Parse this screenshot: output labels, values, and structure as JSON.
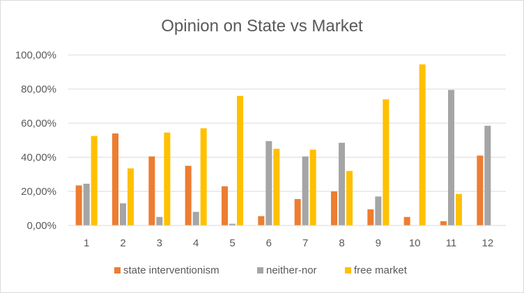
{
  "chart_data": {
    "type": "bar",
    "title": "Opinion on State vs Market",
    "xlabel": "",
    "ylabel": "",
    "categories": [
      "1",
      "2",
      "3",
      "4",
      "5",
      "6",
      "7",
      "8",
      "9",
      "10",
      "11",
      "12"
    ],
    "series": [
      {
        "name": "state interventionism",
        "color": "#ed7d31",
        "values": [
          23.5,
          54.0,
          40.5,
          35.0,
          23.0,
          5.5,
          15.5,
          20.0,
          9.5,
          5.0,
          2.5,
          41.0
        ]
      },
      {
        "name": "neither-nor",
        "color": "#a5a5a5",
        "values": [
          24.5,
          13.0,
          5.0,
          8.0,
          1.0,
          49.5,
          40.5,
          48.5,
          17.0,
          0,
          79.5,
          58.5
        ]
      },
      {
        "name": "free market",
        "color": "#ffc000",
        "values": [
          52.5,
          33.5,
          54.5,
          57.0,
          76.0,
          45.0,
          44.5,
          32.0,
          74.0,
          94.5,
          18.5,
          0
        ]
      }
    ],
    "ylim": [
      0,
      100
    ],
    "yticks": [
      "0,00%",
      "20,00%",
      "40,00%",
      "60,00%",
      "80,00%",
      "100,00%"
    ],
    "ytick_values": [
      0,
      20,
      40,
      60,
      80,
      100
    ],
    "grid": true,
    "legend_position": "bottom"
  }
}
